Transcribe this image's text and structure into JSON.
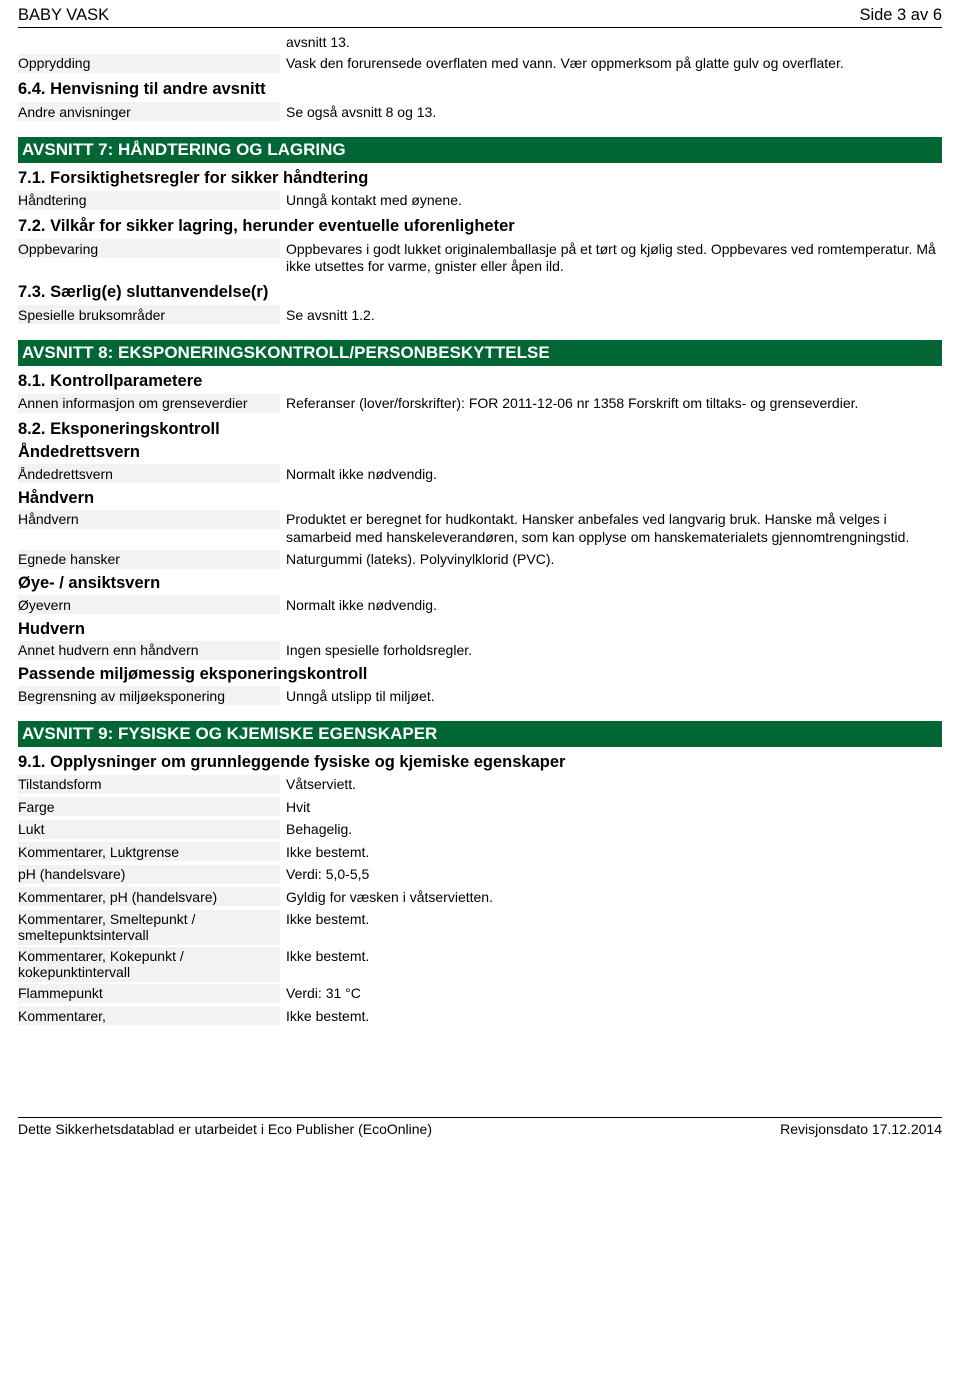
{
  "header": {
    "title": "BABY VASK",
    "page": "Side 3 av 6"
  },
  "colors": {
    "section_bar_bg": "#006633",
    "section_bar_text": "#ffffff",
    "label_bg": "#f2f2f2",
    "text": "#000000",
    "page_bg": "#ffffff"
  },
  "prelude": {
    "note": "avsnitt 13.",
    "rows": [
      {
        "label": "Opprydding",
        "value": "Vask den forurensede overflaten med vann. Vær oppmerksom på glatte gulv og overflater."
      }
    ]
  },
  "ref_heading": "6.4. Henvisning til andre avsnitt",
  "ref_rows": [
    {
      "label": "Andre anvisninger",
      "value": "Se også avsnitt 8 og 13."
    }
  ],
  "section7": {
    "title": "AVSNITT 7: HÅNDTERING OG LAGRING",
    "s71": "7.1. Forsiktighetsregler for sikker håndtering",
    "rows71": [
      {
        "label": "Håndtering",
        "value": "Unngå kontakt med øynene."
      }
    ],
    "s72": "7.2. Vilkår for sikker lagring, herunder eventuelle uforenligheter",
    "rows72": [
      {
        "label": "Oppbevaring",
        "value": "Oppbevares i godt lukket originalemballasje på et tørt og kjølig sted. Oppbevares ved romtemperatur. Må ikke utsettes for varme, gnister eller åpen ild."
      }
    ],
    "s73": "7.3. Særlig(e) sluttanvendelse(r)",
    "rows73": [
      {
        "label": "Spesielle bruksområder",
        "value": "Se avsnitt 1.2."
      }
    ]
  },
  "section8": {
    "title": "AVSNITT 8: EKSPONERINGSKONTROLL/PERSONBESKYTTELSE",
    "s81": "8.1. Kontrollparametere",
    "rows81": [
      {
        "label": "Annen informasjon om grenseverdier",
        "value": "Referanser (lover/forskrifter): FOR 2011-12-06 nr 1358 Forskrift om tiltaks- og grenseverdier."
      }
    ],
    "s82": "8.2. Eksponeringskontroll",
    "g_anded": "Åndedrettsvern",
    "rows_anded": [
      {
        "label": "Åndedrettsvern",
        "value": "Normalt ikke nødvendig."
      }
    ],
    "g_hand": "Håndvern",
    "rows_hand": [
      {
        "label": "Håndvern",
        "value": "Produktet er beregnet for hudkontakt. Hansker anbefales ved langvarig bruk. Hanske må velges i samarbeid med hanskeleverandøren, som kan opplyse om hanskematerialets gjennomtrengningstid."
      },
      {
        "label": "Egnede hansker",
        "value": "Naturgummi (lateks). Polyvinylklorid (PVC)."
      }
    ],
    "g_eye": "Øye- / ansiktsvern",
    "rows_eye": [
      {
        "label": "Øyevern",
        "value": "Normalt ikke nødvendig."
      }
    ],
    "g_skin": "Hudvern",
    "rows_skin": [
      {
        "label": "Annet hudvern enn håndvern",
        "value": "Ingen spesielle forholdsregler."
      }
    ],
    "g_env": "Passende miljømessig eksponeringskontroll",
    "rows_env": [
      {
        "label": "Begrensning av miljøeksponering",
        "value": "Unngå utslipp til miljøet."
      }
    ]
  },
  "section9": {
    "title": "AVSNITT 9: FYSISKE OG KJEMISKE EGENSKAPER",
    "s91": "9.1. Opplysninger om grunnleggende fysiske og kjemiske egenskaper",
    "rows": [
      {
        "label": "Tilstandsform",
        "value": "Våtserviett."
      },
      {
        "label": "Farge",
        "value": "Hvit"
      },
      {
        "label": "Lukt",
        "value": "Behagelig."
      },
      {
        "label": "Kommentarer, Luktgrense",
        "value": "Ikke bestemt."
      },
      {
        "label": "pH (handelsvare)",
        "value": "Verdi: 5,0-5,5"
      },
      {
        "label": "Kommentarer, pH (handelsvare)",
        "value": "Gyldig for væsken i våtservietten."
      },
      {
        "label": "Kommentarer, Smeltepunkt / smeltepunktsintervall",
        "value": "Ikke bestemt."
      },
      {
        "label": "Kommentarer, Kokepunkt / kokepunktintervall",
        "value": "Ikke bestemt."
      },
      {
        "label": "Flammepunkt",
        "value": "Verdi: 31 °C"
      },
      {
        "label": "Kommentarer,",
        "value": "Ikke bestemt."
      }
    ]
  },
  "footer": {
    "left": "Dette Sikkerhetsdatablad er utarbeidet i Eco Publisher (EcoOnline)",
    "right": "Revisjonsdato 17.12.2014"
  }
}
